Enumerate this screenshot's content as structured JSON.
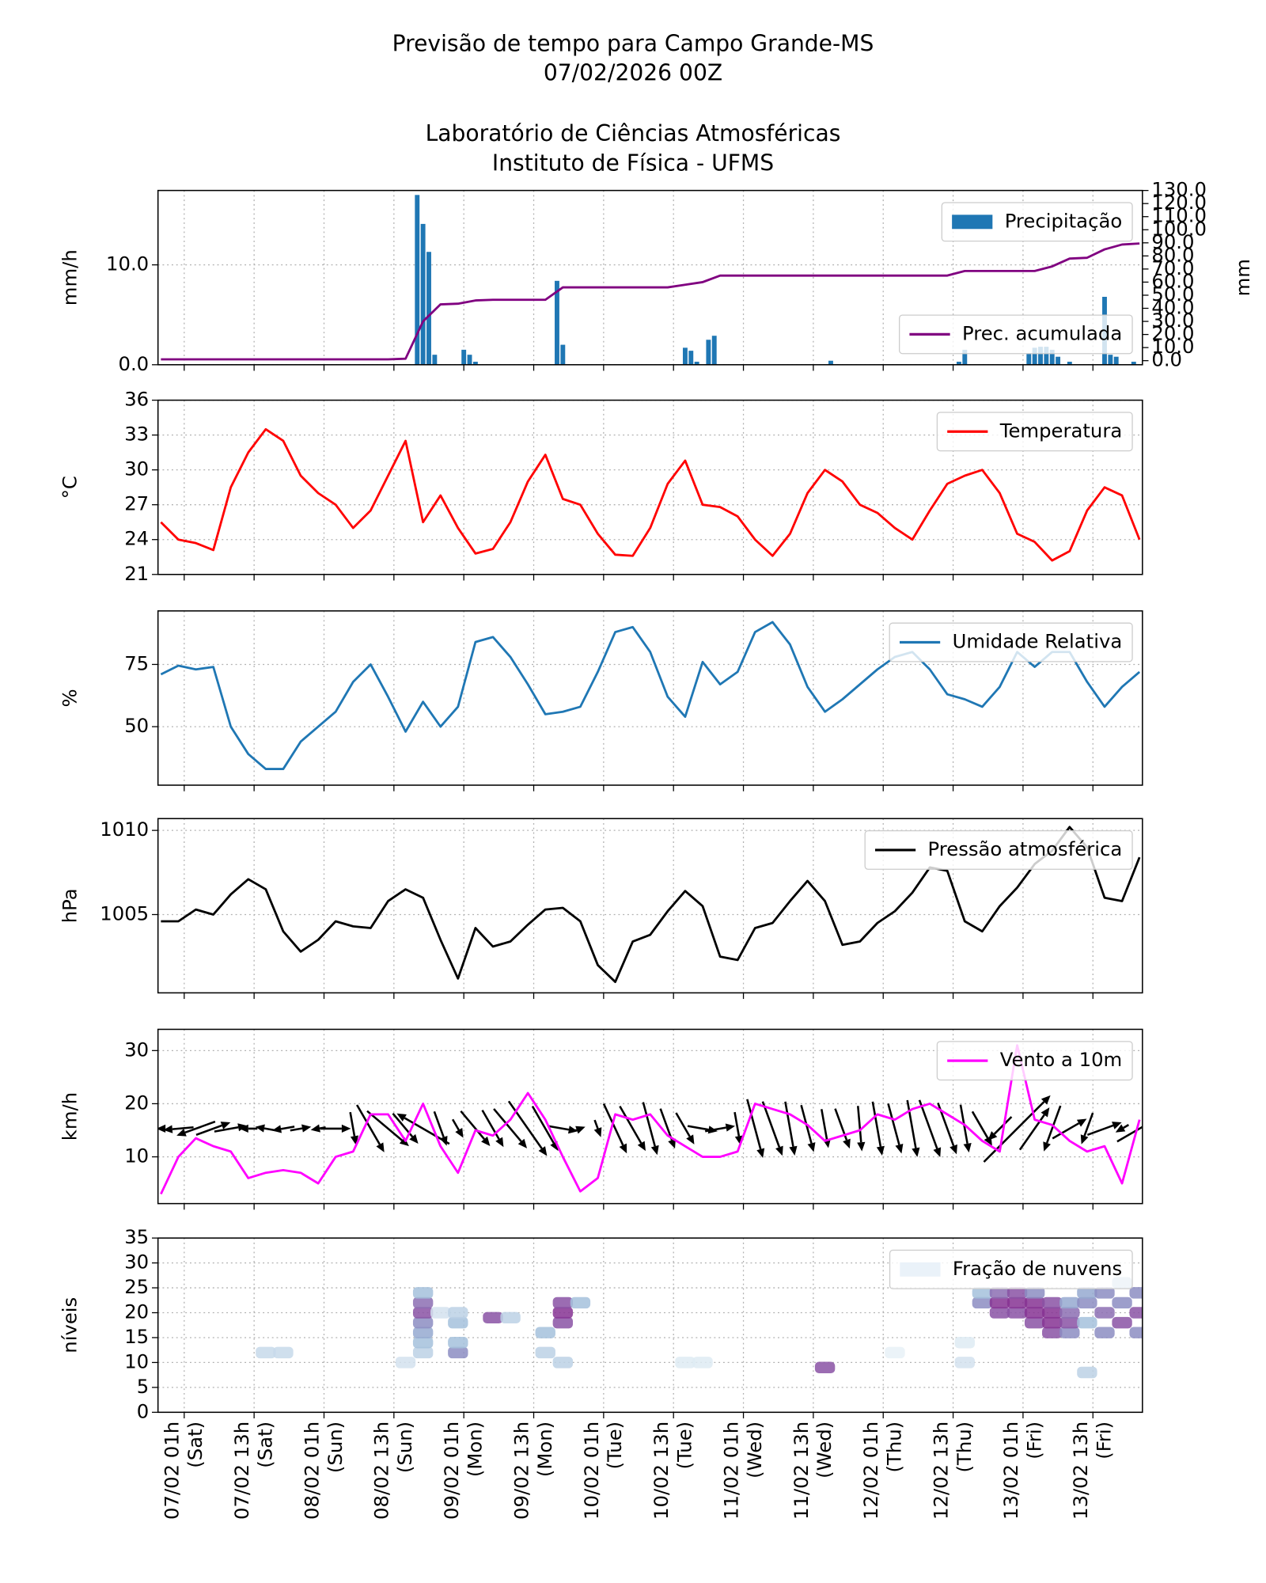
{
  "header": {
    "title": [
      "Previsão de tempo para Campo Grande-MS",
      "07/02/2026 00Z",
      "Laboratório de Ciências Atmosféricas",
      "Instituto de Física - UFMS"
    ]
  },
  "chart_data": [
    {
      "type": "bar-line",
      "ylabel": "mm/h",
      "y2label": "mm",
      "legend": "upper right",
      "grid": true,
      "xlim": [
        -3.5,
        165.5
      ],
      "xticks": [
        1,
        13,
        25,
        37,
        49,
        61,
        73,
        85,
        97,
        109,
        121,
        133,
        145,
        157
      ],
      "ylim": [
        0,
        17.45
      ],
      "yticks": [
        {
          "value": 0,
          "label": "0.0"
        },
        {
          "value": 10,
          "label": "10.0"
        }
      ],
      "y2lim": [
        -3.1,
        130
      ],
      "y2ticks": [
        {
          "value": 0,
          "label": "0.0"
        },
        {
          "value": 10,
          "label": "10.0"
        },
        {
          "value": 20,
          "label": "20.0"
        },
        {
          "value": 30,
          "label": "30.0"
        },
        {
          "value": 40,
          "label": "40.0"
        },
        {
          "value": 50,
          "label": "50.0"
        },
        {
          "value": 60,
          "label": "60.0"
        },
        {
          "value": 70,
          "label": "70.0"
        },
        {
          "value": 80,
          "label": "80.0"
        },
        {
          "value": 90,
          "label": "90.0"
        },
        {
          "value": 100,
          "label": "100.0"
        },
        {
          "value": 110,
          "label": "110.0"
        },
        {
          "value": 120,
          "label": "120.0"
        },
        {
          "value": 130,
          "label": "130.0"
        }
      ],
      "series": [
        {
          "name": "Precipitação",
          "kind": "bar",
          "color": "#1f77b4",
          "x": [
            41,
            42,
            43,
            44,
            49,
            50,
            51,
            65,
            66,
            87,
            88,
            89,
            91,
            92,
            112,
            134,
            135,
            146,
            147,
            148,
            149,
            150,
            151,
            153,
            159,
            160,
            161,
            164
          ],
          "values": [
            17.0,
            14.1,
            11.3,
            1.0,
            1.5,
            1.0,
            0.3,
            8.4,
            2.0,
            1.7,
            1.4,
            0.3,
            2.5,
            2.9,
            0.4,
            0.3,
            1.5,
            1.1,
            1.7,
            1.8,
            1.8,
            1.5,
            0.8,
            0.3,
            6.8,
            1.0,
            0.8,
            0.3
          ]
        },
        {
          "name": "Prec. acumulada",
          "kind": "line",
          "axis": "y2",
          "color": "#800080",
          "legend": "lower right",
          "x": [
            -3,
            0,
            3,
            6,
            9,
            12,
            15,
            18,
            21,
            24,
            27,
            30,
            33,
            36,
            39,
            42,
            45,
            48,
            51,
            54,
            57,
            60,
            63,
            66,
            69,
            72,
            75,
            78,
            81,
            84,
            87,
            90,
            93,
            96,
            99,
            102,
            105,
            108,
            111,
            114,
            117,
            120,
            123,
            126,
            129,
            132,
            135,
            138,
            141,
            144,
            147,
            150,
            153,
            156,
            159,
            162,
            165
          ],
          "values": [
            1,
            1,
            1,
            1,
            1,
            1,
            1,
            1,
            1,
            1,
            1,
            1,
            1,
            1,
            1.5,
            30,
            43,
            43.5,
            46,
            46.5,
            46.5,
            46.5,
            46.5,
            56,
            56,
            56,
            56,
            56,
            56,
            56,
            58,
            60,
            65,
            65,
            65,
            65,
            65,
            65,
            65,
            65,
            65,
            65,
            65,
            65,
            65,
            65,
            68.5,
            68.5,
            68.5,
            68.5,
            68.5,
            72,
            78,
            78.6,
            85,
            88.7,
            89.5
          ]
        }
      ]
    },
    {
      "type": "line",
      "ylabel": "°C",
      "legend": "upper right",
      "grid": true,
      "xlim": [
        -3.5,
        165.5
      ],
      "xticks": [
        1,
        13,
        25,
        37,
        49,
        61,
        73,
        85,
        97,
        109,
        121,
        133,
        145,
        157
      ],
      "ylim": [
        21,
        36
      ],
      "yticks": [
        21,
        24,
        27,
        30,
        33,
        36
      ],
      "x": [
        -3,
        0,
        3,
        6,
        9,
        12,
        15,
        18,
        21,
        24,
        27,
        30,
        33,
        36,
        39,
        42,
        45,
        48,
        51,
        54,
        57,
        60,
        63,
        66,
        69,
        72,
        75,
        78,
        81,
        84,
        87,
        90,
        93,
        96,
        99,
        102,
        105,
        108,
        111,
        114,
        117,
        120,
        123,
        126,
        129,
        132,
        135,
        138,
        141,
        144,
        147,
        150,
        153,
        156,
        159,
        162,
        165
      ],
      "series": [
        {
          "name": "Temperatura",
          "color": "#ff0000",
          "values": [
            25.5,
            24.0,
            23.7,
            23.1,
            28.5,
            31.5,
            33.5,
            32.5,
            29.5,
            28.0,
            27.0,
            25.0,
            26.5,
            29.5,
            32.5,
            25.5,
            27.8,
            25.0,
            22.8,
            23.2,
            25.5,
            29.0,
            31.3,
            27.5,
            27.0,
            24.5,
            22.7,
            22.6,
            25.0,
            28.8,
            30.8,
            27.0,
            26.8,
            26.0,
            24.0,
            22.6,
            24.5,
            28.0,
            30.0,
            29.0,
            27.0,
            26.3,
            25.0,
            24.0,
            26.5,
            28.8,
            29.5,
            30.0,
            28.0,
            24.5,
            23.8,
            22.2,
            23.0,
            26.5,
            28.5,
            27.8,
            24.0
          ]
        }
      ]
    },
    {
      "type": "line",
      "ylabel": "%",
      "legend": "upper right",
      "grid": true,
      "xlim": [
        -3.5,
        165.5
      ],
      "xticks": [
        1,
        13,
        25,
        37,
        49,
        61,
        73,
        85,
        97,
        109,
        121,
        133,
        145,
        157
      ],
      "ylim": [
        26.5,
        96.5
      ],
      "yticks": [
        50,
        75
      ],
      "x": [
        -3,
        0,
        3,
        6,
        9,
        12,
        15,
        18,
        21,
        24,
        27,
        30,
        33,
        36,
        39,
        42,
        45,
        48,
        51,
        54,
        57,
        60,
        63,
        66,
        69,
        72,
        75,
        78,
        81,
        84,
        87,
        90,
        93,
        96,
        99,
        102,
        105,
        108,
        111,
        114,
        117,
        120,
        123,
        126,
        129,
        132,
        135,
        138,
        141,
        144,
        147,
        150,
        153,
        156,
        159,
        162,
        165
      ],
      "series": [
        {
          "name": "Umidade Relativa",
          "color": "#1f77b4",
          "values": [
            71,
            74.5,
            73,
            74,
            50,
            39,
            33,
            33,
            44,
            50,
            56,
            68,
            75,
            62,
            48,
            60,
            50,
            58,
            84,
            86,
            78,
            67,
            55,
            56,
            58,
            72,
            88,
            90,
            80,
            62,
            54,
            76,
            67,
            72,
            88,
            92,
            83,
            66,
            56,
            61,
            67,
            73,
            78,
            80,
            73,
            63,
            61,
            58,
            66,
            80,
            74,
            80,
            80,
            68,
            58,
            66,
            72
          ]
        }
      ]
    },
    {
      "type": "line",
      "ylabel": "hPa",
      "legend": "upper right",
      "grid": true,
      "xlim": [
        -3.5,
        165.5
      ],
      "xticks": [
        1,
        13,
        25,
        37,
        49,
        61,
        73,
        85,
        97,
        109,
        121,
        133,
        145,
        157
      ],
      "ylim": [
        1000.35,
        1010.7
      ],
      "yticks": [
        1005,
        1010
      ],
      "x": [
        -3,
        0,
        3,
        6,
        9,
        12,
        15,
        18,
        21,
        24,
        27,
        30,
        33,
        36,
        39,
        42,
        45,
        48,
        51,
        54,
        57,
        60,
        63,
        66,
        69,
        72,
        75,
        78,
        81,
        84,
        87,
        90,
        93,
        96,
        99,
        102,
        105,
        108,
        111,
        114,
        117,
        120,
        123,
        126,
        129,
        132,
        135,
        138,
        141,
        144,
        147,
        150,
        153,
        156,
        159,
        162,
        165
      ],
      "series": [
        {
          "name": "Pressão atmosférica",
          "color": "#000000",
          "values": [
            1004.6,
            1004.6,
            1005.3,
            1005.0,
            1006.2,
            1007.1,
            1006.5,
            1004.0,
            1002.8,
            1003.5,
            1004.6,
            1004.3,
            1004.2,
            1005.8,
            1006.5,
            1006.0,
            1003.5,
            1001.2,
            1004.2,
            1003.1,
            1003.4,
            1004.4,
            1005.3,
            1005.4,
            1004.6,
            1002.0,
            1001.0,
            1003.4,
            1003.8,
            1005.2,
            1006.4,
            1005.5,
            1002.5,
            1002.3,
            1004.2,
            1004.5,
            1005.8,
            1007.0,
            1005.8,
            1003.2,
            1003.4,
            1004.5,
            1005.2,
            1006.3,
            1007.8,
            1007.6,
            1004.6,
            1004.0,
            1005.5,
            1006.6,
            1008.0,
            1008.8,
            1010.2,
            1009.0,
            1006.0,
            1005.8,
            1008.4
          ]
        }
      ]
    },
    {
      "type": "line",
      "ylabel": "km/h",
      "legend": "upper right",
      "grid": true,
      "arrow_color": "#000000",
      "xlim": [
        -3.5,
        165.5
      ],
      "xticks": [
        1,
        13,
        25,
        37,
        49,
        61,
        73,
        85,
        97,
        109,
        121,
        133,
        145,
        157
      ],
      "ylim": [
        1.2,
        34
      ],
      "yticks": [
        10,
        20,
        30
      ],
      "x": [
        -3,
        0,
        3,
        6,
        9,
        12,
        15,
        18,
        21,
        24,
        27,
        30,
        33,
        36,
        39,
        42,
        45,
        48,
        51,
        54,
        57,
        60,
        63,
        66,
        69,
        72,
        75,
        78,
        81,
        84,
        87,
        90,
        93,
        96,
        99,
        102,
        105,
        108,
        111,
        114,
        117,
        120,
        123,
        126,
        129,
        132,
        135,
        138,
        141,
        144,
        147,
        150,
        153,
        156,
        159,
        162,
        165
      ],
      "series": [
        {
          "name": "Vento a 10m",
          "color": "#ff00ff",
          "values": [
            3,
            10,
            13.5,
            12,
            11,
            6,
            7,
            7.5,
            7,
            5,
            10,
            11,
            18,
            18,
            13,
            20,
            12,
            7,
            15,
            14,
            17,
            22,
            17,
            10,
            3.5,
            6,
            18,
            17,
            18,
            14,
            12,
            10,
            10,
            11,
            20,
            19,
            18,
            16,
            13,
            14,
            15,
            18,
            17,
            19,
            20,
            18,
            16,
            13,
            11,
            31,
            17,
            16,
            13,
            11,
            12,
            5,
            17
          ]
        }
      ],
      "direction": [
        270,
        265,
        250,
        70,
        80,
        270,
        280,
        260,
        80,
        260,
        90,
        170,
        150,
        130,
        140,
        300,
        160,
        150,
        140,
        150,
        140,
        145,
        150,
        100,
        70,
        160,
        155,
        150,
        165,
        160,
        150,
        100,
        80,
        170,
        165,
        160,
        170,
        165,
        170,
        160,
        175,
        170,
        165,
        170,
        160,
        160,
        170,
        150,
        225,
        45,
        35,
        200,
        60,
        200,
        70,
        240,
        60
      ]
    },
    {
      "type": "cells",
      "ylabel": "níveis",
      "legend": "upper right",
      "grid": true,
      "name": "Fração de nuvens",
      "color": "#eaf2f9",
      "colormap": [
        "#f7fcfd",
        "#e0ecf4",
        "#bfd3e6",
        "#9ebcda",
        "#8c96c6",
        "#8c6bb1",
        "#88419d",
        "#810f7c"
      ],
      "xlim": [
        -3.5,
        165.5
      ],
      "xticks": [
        {
          "value": 1,
          "label": "07/02 01h\n(Sat)"
        },
        {
          "value": 13,
          "label": "07/02 13h\n(Sat)"
        },
        {
          "value": 25,
          "label": "08/02 01h\n(Sun)"
        },
        {
          "value": 37,
          "label": "08/02 13h\n(Sun)"
        },
        {
          "value": 49,
          "label": "09/02 01h\n(Mon)"
        },
        {
          "value": 61,
          "label": "09/02 13h\n(Mon)"
        },
        {
          "value": 73,
          "label": "10/02 01h\n(Tue)"
        },
        {
          "value": 85,
          "label": "10/02 13h\n(Tue)"
        },
        {
          "value": 97,
          "label": "11/02 01h\n(Wed)"
        },
        {
          "value": 109,
          "label": "11/02 13h\n(Wed)"
        },
        {
          "value": 121,
          "label": "12/02 01h\n(Thu)"
        },
        {
          "value": 133,
          "label": "12/02 13h\n(Thu)"
        },
        {
          "value": 145,
          "label": "13/02 01h\n(Fri)"
        },
        {
          "value": 157,
          "label": "13/02 13h\n(Fri)"
        }
      ],
      "ylim": [
        0,
        35
      ],
      "yticks": [
        0,
        5,
        10,
        15,
        20,
        25,
        30,
        35
      ],
      "cells": {
        "x": [
          15,
          18,
          39,
          42,
          42,
          42,
          42,
          42,
          42,
          42,
          45,
          48,
          48,
          48,
          48,
          54,
          57,
          63,
          63,
          66,
          66,
          66,
          66,
          69,
          87,
          90,
          111,
          123,
          135,
          135,
          138,
          138,
          141,
          141,
          141,
          144,
          144,
          144,
          147,
          147,
          147,
          147,
          150,
          150,
          150,
          150,
          153,
          153,
          153,
          153,
          156,
          156,
          156,
          156,
          159,
          159,
          159,
          162,
          162,
          162,
          165,
          165,
          165
        ],
        "level": [
          12,
          12,
          10,
          12,
          14,
          16,
          18,
          20,
          22,
          24,
          20,
          12,
          14,
          18,
          20,
          19,
          19,
          12,
          16,
          10,
          18,
          20,
          22,
          22,
          10,
          10,
          9,
          12,
          10,
          14,
          22,
          24,
          20,
          22,
          24,
          20,
          22,
          24,
          18,
          20,
          22,
          24,
          16,
          18,
          20,
          22,
          16,
          18,
          20,
          22,
          8,
          18,
          22,
          24,
          16,
          20,
          24,
          18,
          22,
          26,
          16,
          20,
          24
        ],
        "fraction": [
          0.25,
          0.25,
          0.2,
          0.3,
          0.4,
          0.5,
          0.6,
          0.8,
          0.7,
          0.4,
          0.2,
          0.6,
          0.4,
          0.4,
          0.3,
          0.8,
          0.3,
          0.3,
          0.4,
          0.3,
          0.8,
          0.9,
          0.8,
          0.4,
          0.15,
          0.15,
          0.8,
          0.1,
          0.2,
          0.15,
          0.6,
          0.4,
          0.8,
          0.9,
          0.7,
          0.8,
          0.9,
          0.8,
          0.8,
          0.9,
          0.9,
          0.6,
          0.8,
          0.9,
          0.9,
          0.8,
          0.6,
          0.8,
          0.7,
          0.5,
          0.3,
          0.4,
          0.6,
          0.5,
          0.6,
          0.7,
          0.6,
          0.8,
          0.6,
          0.4,
          0.6,
          0.8,
          0.6
        ]
      }
    }
  ]
}
